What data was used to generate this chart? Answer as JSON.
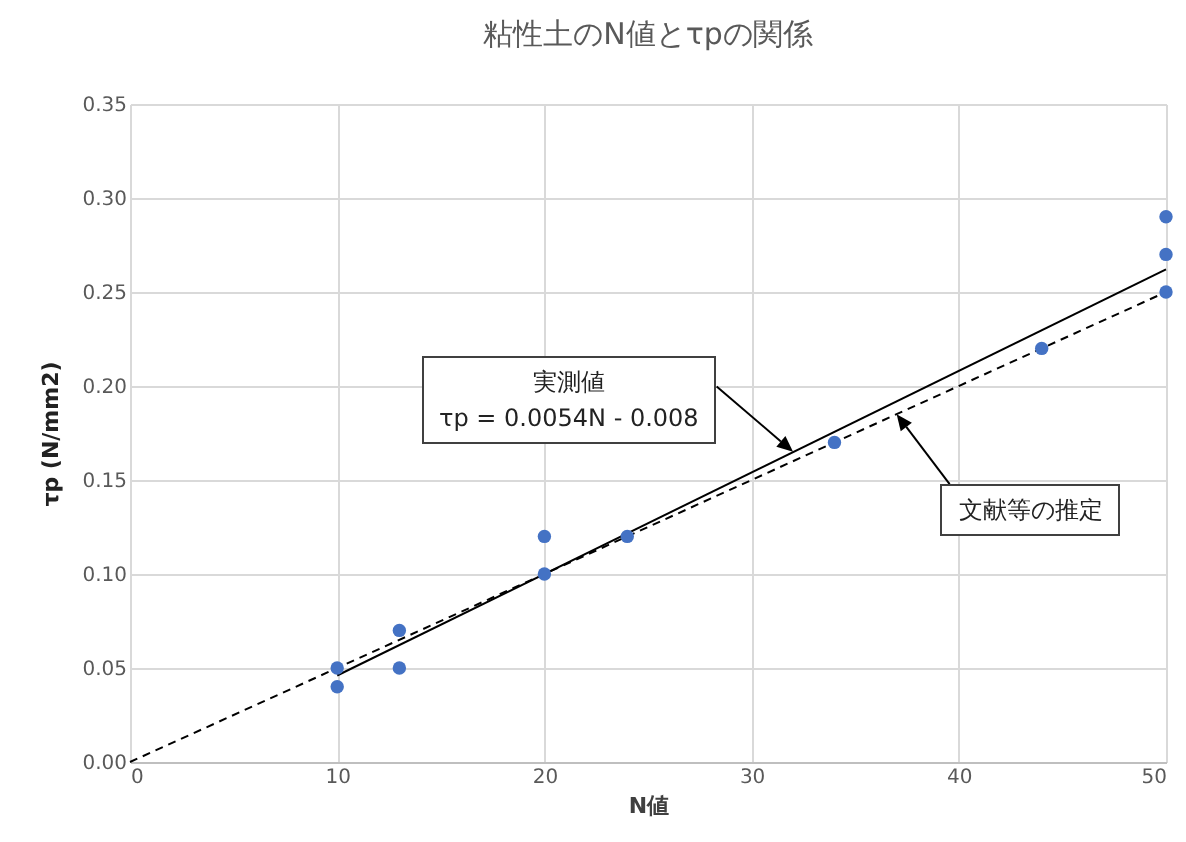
{
  "chart_data": {
    "type": "scatter",
    "title": "粘性土のN値とτpの関係",
    "xlabel": "N値",
    "ylabel": "τp (N/mm2)",
    "xlim": [
      0,
      50
    ],
    "xticks": [
      0,
      10,
      20,
      30,
      40,
      50
    ],
    "ylim": [
      0,
      0.35
    ],
    "yticks": [
      {
        "value": 0,
        "label": "0.00"
      },
      0.05,
      {
        "value": 0.1,
        "label": "0.10"
      },
      0.15,
      {
        "value": 0.2,
        "label": "0.20"
      },
      0.25,
      {
        "value": 0.3,
        "label": "0.30"
      },
      0.35
    ],
    "grid": true,
    "series": [
      {
        "marker": "circle",
        "color": "#4472c4",
        "x": [
          10,
          10,
          13,
          13,
          20,
          20,
          24,
          34,
          44,
          50,
          50,
          50
        ],
        "values": [
          0.05,
          0.04,
          0.07,
          0.05,
          0.12,
          0.1,
          0.12,
          0.17,
          0.22,
          0.29,
          0.27,
          0.25
        ]
      },
      {
        "type": "line",
        "color": "#000000",
        "line_style": "solid",
        "x": [
          10,
          50
        ],
        "values": [
          0.046,
          0.262
        ]
      },
      {
        "type": "line",
        "color": "#000000",
        "line_style": "dashed",
        "x": [
          0,
          50
        ],
        "values": [
          0,
          0.25
        ]
      }
    ],
    "annotations": [
      {
        "text": "実測値\nτp = 0.0054N - 0.008",
        "x": 32,
        "y": 0.165
      },
      {
        "text": "文献等の推定",
        "x": 37,
        "y": 0.185
      }
    ]
  }
}
